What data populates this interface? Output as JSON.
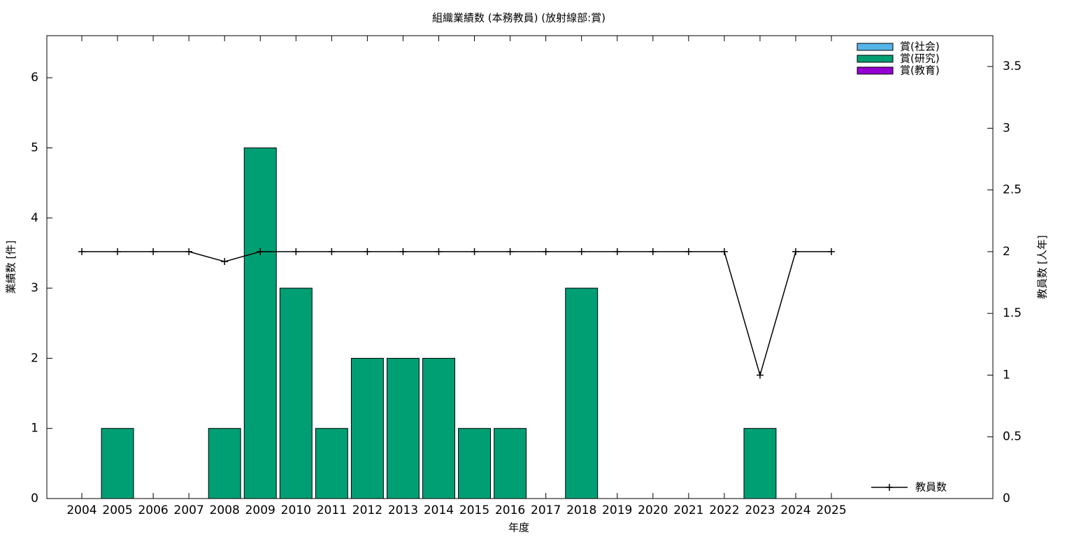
{
  "chart_data": {
    "type": "bar",
    "title": "組織業績数 (本務教員) (放射線部:賞)",
    "x_label": "年度",
    "y_label": "業績数 [件]",
    "y2_label": "教員数 [人年]",
    "categories": [
      "2004",
      "2005",
      "2006",
      "2007",
      "2008",
      "2009",
      "2010",
      "2011",
      "2012",
      "2013",
      "2014",
      "2015",
      "2016",
      "2017",
      "2018",
      "2019",
      "2020",
      "2021",
      "2022",
      "2023",
      "2024",
      "2025"
    ],
    "stacked": true,
    "series": [
      {
        "name": "賞(社会)",
        "color": "#56b4e9",
        "values": [
          0,
          0,
          0,
          0,
          0,
          0,
          0,
          0,
          0,
          0,
          0,
          0,
          0,
          0,
          0,
          0,
          0,
          0,
          0,
          0,
          0,
          0
        ]
      },
      {
        "name": "賞(研究)",
        "color": "#009e73",
        "values": [
          0,
          1,
          0,
          0,
          1,
          5,
          3,
          1,
          2,
          2,
          2,
          1,
          1,
          0,
          3,
          0,
          0,
          0,
          0,
          1,
          0,
          0
        ]
      },
      {
        "name": "賞(教育)",
        "color": "#9400d3",
        "values": [
          0,
          0,
          0,
          0,
          0,
          0,
          0,
          0,
          0,
          0,
          0,
          0,
          0,
          0,
          0,
          0,
          0,
          0,
          0,
          0,
          0,
          0
        ]
      },
      {
        "name": "教員数",
        "type": "line",
        "axis": "y2",
        "color": "#000000",
        "values": [
          2,
          2,
          2,
          2,
          1.92,
          2,
          2,
          2,
          2,
          2,
          2,
          2,
          2,
          2,
          2,
          2,
          2,
          2,
          2,
          1,
          2,
          2
        ]
      }
    ],
    "ylim": [
      0,
      6.6
    ],
    "yticks": [
      0,
      1,
      2,
      3,
      4,
      5,
      6
    ],
    "y2lim": [
      0,
      3.75
    ],
    "y2ticks": [
      0,
      0.5,
      1,
      1.5,
      2,
      2.5,
      3,
      3.5
    ]
  }
}
